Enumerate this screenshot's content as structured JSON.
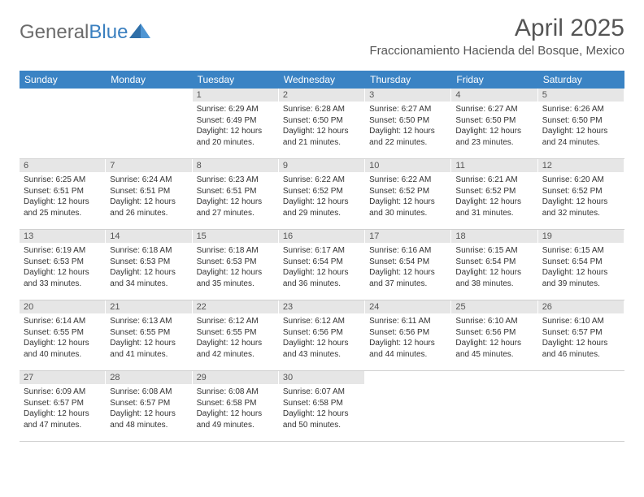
{
  "logo": {
    "general": "General",
    "blue": "Blue"
  },
  "title": "April 2025",
  "location": "Fraccionamiento Hacienda del Bosque, Mexico",
  "colors": {
    "header_bg": "#3a83c4",
    "header_text": "#ffffff",
    "daynum_bg": "#e6e6e6",
    "body_text": "#333333",
    "title_text": "#555555"
  },
  "day_headers": [
    "Sunday",
    "Monday",
    "Tuesday",
    "Wednesday",
    "Thursday",
    "Friday",
    "Saturday"
  ],
  "weeks": [
    [
      {
        "empty": true
      },
      {
        "empty": true
      },
      {
        "num": "1",
        "sunrise": "6:29 AM",
        "sunset": "6:49 PM",
        "daylight": "12 hours and 20 minutes."
      },
      {
        "num": "2",
        "sunrise": "6:28 AM",
        "sunset": "6:50 PM",
        "daylight": "12 hours and 21 minutes."
      },
      {
        "num": "3",
        "sunrise": "6:27 AM",
        "sunset": "6:50 PM",
        "daylight": "12 hours and 22 minutes."
      },
      {
        "num": "4",
        "sunrise": "6:27 AM",
        "sunset": "6:50 PM",
        "daylight": "12 hours and 23 minutes."
      },
      {
        "num": "5",
        "sunrise": "6:26 AM",
        "sunset": "6:50 PM",
        "daylight": "12 hours and 24 minutes."
      }
    ],
    [
      {
        "num": "6",
        "sunrise": "6:25 AM",
        "sunset": "6:51 PM",
        "daylight": "12 hours and 25 minutes."
      },
      {
        "num": "7",
        "sunrise": "6:24 AM",
        "sunset": "6:51 PM",
        "daylight": "12 hours and 26 minutes."
      },
      {
        "num": "8",
        "sunrise": "6:23 AM",
        "sunset": "6:51 PM",
        "daylight": "12 hours and 27 minutes."
      },
      {
        "num": "9",
        "sunrise": "6:22 AM",
        "sunset": "6:52 PM",
        "daylight": "12 hours and 29 minutes."
      },
      {
        "num": "10",
        "sunrise": "6:22 AM",
        "sunset": "6:52 PM",
        "daylight": "12 hours and 30 minutes."
      },
      {
        "num": "11",
        "sunrise": "6:21 AM",
        "sunset": "6:52 PM",
        "daylight": "12 hours and 31 minutes."
      },
      {
        "num": "12",
        "sunrise": "6:20 AM",
        "sunset": "6:52 PM",
        "daylight": "12 hours and 32 minutes."
      }
    ],
    [
      {
        "num": "13",
        "sunrise": "6:19 AM",
        "sunset": "6:53 PM",
        "daylight": "12 hours and 33 minutes."
      },
      {
        "num": "14",
        "sunrise": "6:18 AM",
        "sunset": "6:53 PM",
        "daylight": "12 hours and 34 minutes."
      },
      {
        "num": "15",
        "sunrise": "6:18 AM",
        "sunset": "6:53 PM",
        "daylight": "12 hours and 35 minutes."
      },
      {
        "num": "16",
        "sunrise": "6:17 AM",
        "sunset": "6:54 PM",
        "daylight": "12 hours and 36 minutes."
      },
      {
        "num": "17",
        "sunrise": "6:16 AM",
        "sunset": "6:54 PM",
        "daylight": "12 hours and 37 minutes."
      },
      {
        "num": "18",
        "sunrise": "6:15 AM",
        "sunset": "6:54 PM",
        "daylight": "12 hours and 38 minutes."
      },
      {
        "num": "19",
        "sunrise": "6:15 AM",
        "sunset": "6:54 PM",
        "daylight": "12 hours and 39 minutes."
      }
    ],
    [
      {
        "num": "20",
        "sunrise": "6:14 AM",
        "sunset": "6:55 PM",
        "daylight": "12 hours and 40 minutes."
      },
      {
        "num": "21",
        "sunrise": "6:13 AM",
        "sunset": "6:55 PM",
        "daylight": "12 hours and 41 minutes."
      },
      {
        "num": "22",
        "sunrise": "6:12 AM",
        "sunset": "6:55 PM",
        "daylight": "12 hours and 42 minutes."
      },
      {
        "num": "23",
        "sunrise": "6:12 AM",
        "sunset": "6:56 PM",
        "daylight": "12 hours and 43 minutes."
      },
      {
        "num": "24",
        "sunrise": "6:11 AM",
        "sunset": "6:56 PM",
        "daylight": "12 hours and 44 minutes."
      },
      {
        "num": "25",
        "sunrise": "6:10 AM",
        "sunset": "6:56 PM",
        "daylight": "12 hours and 45 minutes."
      },
      {
        "num": "26",
        "sunrise": "6:10 AM",
        "sunset": "6:57 PM",
        "daylight": "12 hours and 46 minutes."
      }
    ],
    [
      {
        "num": "27",
        "sunrise": "6:09 AM",
        "sunset": "6:57 PM",
        "daylight": "12 hours and 47 minutes."
      },
      {
        "num": "28",
        "sunrise": "6:08 AM",
        "sunset": "6:57 PM",
        "daylight": "12 hours and 48 minutes."
      },
      {
        "num": "29",
        "sunrise": "6:08 AM",
        "sunset": "6:58 PM",
        "daylight": "12 hours and 49 minutes."
      },
      {
        "num": "30",
        "sunrise": "6:07 AM",
        "sunset": "6:58 PM",
        "daylight": "12 hours and 50 minutes."
      },
      {
        "empty": true
      },
      {
        "empty": true
      },
      {
        "empty": true
      }
    ]
  ],
  "labels": {
    "sunrise": "Sunrise:",
    "sunset": "Sunset:",
    "daylight": "Daylight:"
  }
}
